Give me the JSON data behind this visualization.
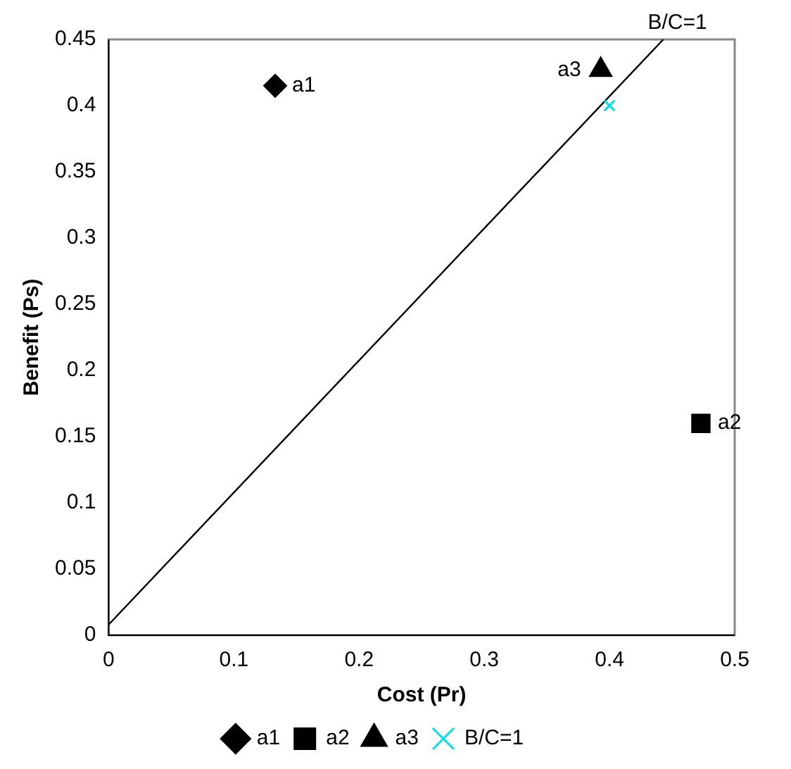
{
  "chart_data": {
    "type": "scatter",
    "xlabel": "Cost (Pr)",
    "ylabel": "Benefit (Ps)",
    "xlim": [
      0,
      0.5
    ],
    "xticks": [
      0,
      0.1,
      0.2,
      0.3,
      0.4,
      0.5
    ],
    "ylim": [
      0,
      0.45
    ],
    "yticks": [
      0,
      0.05,
      0.1,
      0.15,
      0.2,
      0.25,
      0.3,
      0.35,
      0.4,
      0.45
    ],
    "grid": false,
    "legend": "bottom",
    "series": [
      {
        "name": "a1",
        "color": "#000000",
        "marker": "diamond",
        "x": [
          0.133
        ],
        "values": [
          0.415
        ]
      },
      {
        "name": "a2",
        "color": "#000000",
        "marker": "square",
        "x": [
          0.473
        ],
        "values": [
          0.16
        ]
      },
      {
        "name": "a3",
        "color": "#000000",
        "marker": "triangle",
        "x": [
          0.393
        ],
        "values": [
          0.427
        ]
      },
      {
        "name": "B/C=1",
        "color": "#00e0e8",
        "marker": "cross",
        "x": [
          0.4
        ],
        "values": [
          0.4
        ]
      },
      {
        "type": "line",
        "color": "#000000",
        "marker": "none",
        "x": [
          0,
          0.443
        ],
        "values": [
          0.008,
          0.45
        ]
      }
    ],
    "annotations": [
      {
        "text": "B/C=1",
        "x": 0.443,
        "y": 0.45
      }
    ]
  }
}
